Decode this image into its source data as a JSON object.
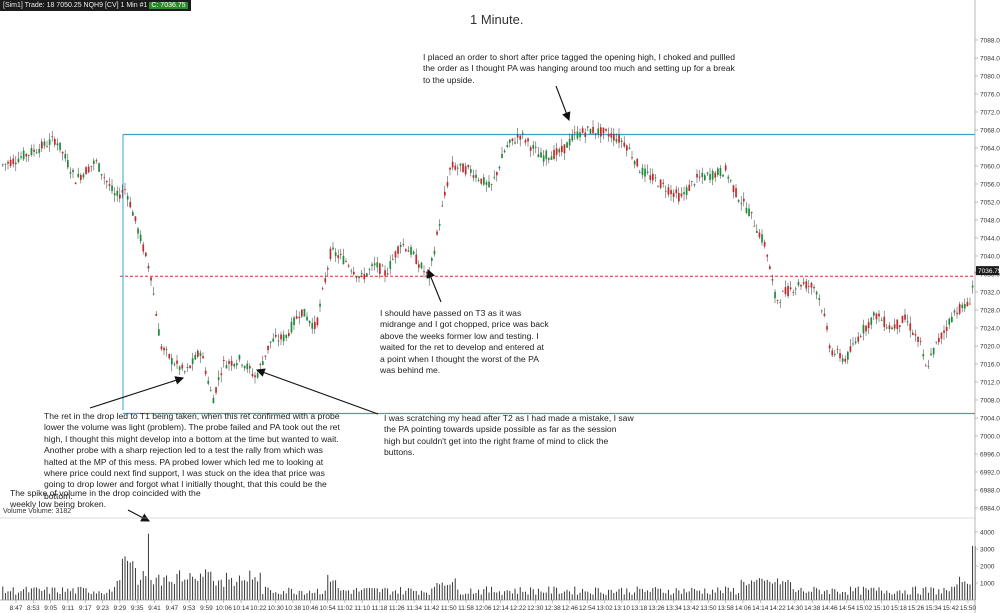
{
  "header": {
    "text": "[Sim1] Trade: 18 7050.25 NQH9 [CV] 1 Min #1",
    "last_price": "C: 7036.75"
  },
  "title": "1 Minute.",
  "annotations": [
    {
      "id": "opening-high",
      "text": "I placed an order to short after price tagged the opening high, I choked and pullled the order as I thought PA was hanging around too much and setting up for a break to the upside."
    },
    {
      "id": "t3",
      "text": "I should have passed on T3 as it was midrange and I got chopped, price was back above the weeks former low and testing. I waited for the ret to develop and entered at a point when I thought the worst of the PA was behind me."
    },
    {
      "id": "t1",
      "text": "The ret in the drop led to T1 being taken, when this ret confirmed with a probe lower the volume was light (problem). The probe failed and PA took out the ret high, I thought this might develop into a bottom at the time but wanted to wait. Another probe with a sharp rejection led to a test the rally from which was halted at the MP of this mess. PA probed lower which led me to looking at where price could next find support, I was stuck on the idea that price was going to drop lower and forgot what I initially thought, that this could be the bottom."
    },
    {
      "id": "t2",
      "text": "I was scratching my head after T2 as I had made a mistake, I saw the PA pointing towards upside possible as far as the session high but couldn't get into the right frame of mind to click the buttons."
    },
    {
      "id": "volume-spike",
      "text": "The spike of volume in the drop coincided with the weekly low being broken."
    }
  ],
  "volume_label": "Volume Volume: 3182",
  "chart_data": {
    "type": "candlestick",
    "title": "1 Minute.",
    "ylim": [
      6984,
      7092
    ],
    "y_ticks": [
      7088,
      7084,
      7080,
      7076,
      7072,
      7068,
      7064,
      7060,
      7056,
      7052,
      7048,
      7044,
      7040,
      7036,
      7032,
      7028,
      7024,
      7020,
      7016,
      7012,
      7008,
      7004,
      7000,
      6996,
      6992,
      6988,
      6984
    ],
    "y_tick_labels": [
      "7088.00",
      "7084.00",
      "7080.00",
      "7076.00",
      "7072.00",
      "7068.00",
      "7064.00",
      "7060.00",
      "7056.00",
      "7052.00",
      "7048.00",
      "7044.00",
      "7040.00",
      "7036.00",
      "7032.00",
      "7028.00",
      "7024.00",
      "7020.00",
      "7016.00",
      "7012.00",
      "7008.00",
      "7004.00",
      "7000.00",
      "6996.00",
      "6992.00",
      "6988.00",
      "6984.00"
    ],
    "x_ticks": [
      "8:47",
      "8:53",
      "9:05",
      "9:11",
      "9:17",
      "9:23",
      "9:29",
      "9:35",
      "9:41",
      "9:47",
      "9:53",
      "9:59",
      "10:06",
      "10:14",
      "10:22",
      "10:30",
      "10:38",
      "10:46",
      "10:54",
      "11:02",
      "11:10",
      "11:18",
      "11:26",
      "11:34",
      "11:42",
      "11:50",
      "11:58",
      "12:06",
      "12:14",
      "12:22",
      "12:30",
      "12:38",
      "12:46",
      "12:54",
      "13:02",
      "13:10",
      "13:18",
      "13:26",
      "13:34",
      "13:42",
      "13:50",
      "13:58",
      "14:06",
      "14:14",
      "14:22",
      "14:30",
      "14:38",
      "14:46",
      "14:54",
      "15:02",
      "15:10",
      "15:18",
      "15:26",
      "15:34",
      "15:42",
      "15:50"
    ],
    "price_path": [
      [
        0,
        7060
      ],
      [
        30,
        7063
      ],
      [
        55,
        7066
      ],
      [
        75,
        7057
      ],
      [
        95,
        7061
      ],
      [
        115,
        7053
      ],
      [
        125,
        7055
      ],
      [
        150,
        7036
      ],
      [
        160,
        7020
      ],
      [
        170,
        7017
      ],
      [
        185,
        7014
      ],
      [
        200,
        7019
      ],
      [
        212,
        7008
      ],
      [
        222,
        7016
      ],
      [
        240,
        7017
      ],
      [
        255,
        7013
      ],
      [
        270,
        7021
      ],
      [
        285,
        7022
      ],
      [
        300,
        7028
      ],
      [
        315,
        7024
      ],
      [
        330,
        7041
      ],
      [
        345,
        7039
      ],
      [
        360,
        7035
      ],
      [
        375,
        7038
      ],
      [
        385,
        7036
      ],
      [
        400,
        7043
      ],
      [
        410,
        7041
      ],
      [
        428,
        7035
      ],
      [
        440,
        7049
      ],
      [
        450,
        7060
      ],
      [
        470,
        7059
      ],
      [
        490,
        7055
      ],
      [
        505,
        7064
      ],
      [
        520,
        7067
      ],
      [
        540,
        7062
      ],
      [
        560,
        7063
      ],
      [
        575,
        7067
      ],
      [
        590,
        7068
      ],
      [
        610,
        7067
      ],
      [
        625,
        7065
      ],
      [
        640,
        7059
      ],
      [
        660,
        7056
      ],
      [
        680,
        7053
      ],
      [
        695,
        7057
      ],
      [
        710,
        7058
      ],
      [
        725,
        7059
      ],
      [
        735,
        7054
      ],
      [
        748,
        7050
      ],
      [
        765,
        7042
      ],
      [
        775,
        7030
      ],
      [
        785,
        7032
      ],
      [
        800,
        7034
      ],
      [
        815,
        7033
      ],
      [
        822,
        7028
      ],
      [
        830,
        7019
      ],
      [
        845,
        7017
      ],
      [
        860,
        7023
      ],
      [
        875,
        7027
      ],
      [
        890,
        7024
      ],
      [
        905,
        7026
      ],
      [
        920,
        7020
      ],
      [
        925,
        7015
      ],
      [
        935,
        7020
      ],
      [
        945,
        7024
      ],
      [
        955,
        7028
      ],
      [
        968,
        7029
      ],
      [
        975,
        7037
      ]
    ],
    "volume": {
      "label": "Volume Volume: 3182",
      "ylim": [
        0,
        4000
      ],
      "y_ticks": [
        4000,
        3000,
        2000,
        1000
      ],
      "last": 3182
    },
    "levels": [
      {
        "value": 7067,
        "style": "solid",
        "color": "#3aa0c8"
      },
      {
        "value": 7005,
        "style": "solid",
        "color": "#3aa0c8"
      },
      {
        "value": 7035.5,
        "style": "dashed",
        "color": "#d9342b"
      }
    ],
    "last_price_label": "7036.75"
  }
}
